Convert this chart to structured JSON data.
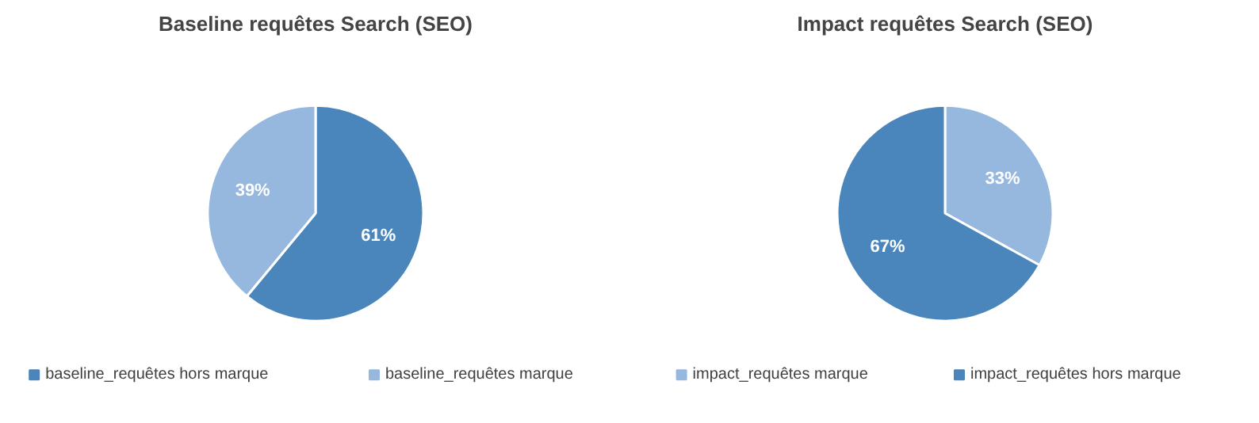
{
  "chart_data": [
    {
      "type": "pie",
      "title": "Baseline requêtes Search (SEO)",
      "categories": [
        "baseline_requêtes hors marque",
        "baseline_requêtes marque"
      ],
      "values": [
        61,
        39
      ],
      "colors": [
        "#4a86bc",
        "#96b8df"
      ],
      "value_labels": [
        "61%",
        "39%"
      ],
      "legend": "bottom"
    },
    {
      "type": "pie",
      "title": "Impact requêtes Search (SEO)",
      "categories": [
        "impact_requêtes marque",
        "impact_requêtes hors marque"
      ],
      "values": [
        33,
        67
      ],
      "colors": [
        "#96b8df",
        "#4a86bc"
      ],
      "value_labels": [
        "33%",
        "67%"
      ],
      "legend": "bottom"
    }
  ]
}
